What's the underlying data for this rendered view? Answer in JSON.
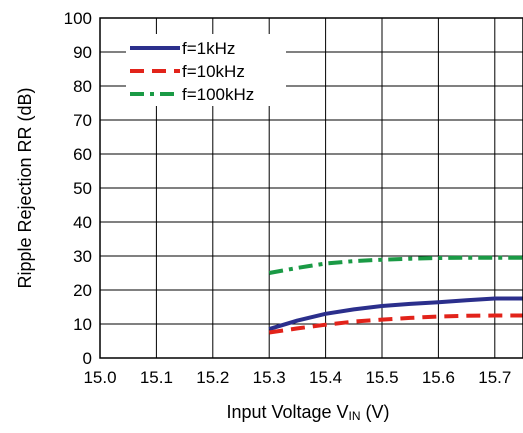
{
  "chart_data": {
    "type": "line",
    "xlabel": "Input Voltage V",
    "xlabel_subscript": "IN",
    "xlabel_unit": " (V)",
    "ylabel": "Ripple Rejection RR (dB)",
    "xlim": [
      15.0,
      15.75
    ],
    "ylim": [
      0,
      100
    ],
    "x_ticks": [
      "15.0",
      "15.1",
      "15.2",
      "15.3",
      "15.4",
      "15.5",
      "15.6",
      "15.7"
    ],
    "x_tick_values": [
      15.0,
      15.1,
      15.2,
      15.3,
      15.4,
      15.5,
      15.6,
      15.7
    ],
    "y_ticks": [
      "0",
      "10",
      "20",
      "30",
      "40",
      "50",
      "60",
      "70",
      "80",
      "90",
      "100"
    ],
    "y_tick_values": [
      0,
      10,
      20,
      30,
      40,
      50,
      60,
      70,
      80,
      90,
      100
    ],
    "grid": true,
    "legend_position": "top-left",
    "series": [
      {
        "name": "f=1kHz",
        "color": "#2b2f8c",
        "dash": "solid",
        "x": [
          15.3,
          15.35,
          15.4,
          15.45,
          15.5,
          15.55,
          15.6,
          15.65,
          15.7,
          15.75
        ],
        "y": [
          8.5,
          11,
          13,
          14.3,
          15.3,
          15.9,
          16.4,
          17.0,
          17.5,
          17.5
        ]
      },
      {
        "name": "f=10kHz",
        "color": "#e2231a",
        "dash": "dashed",
        "x": [
          15.3,
          15.35,
          15.4,
          15.45,
          15.5,
          15.55,
          15.6,
          15.65,
          15.7,
          15.75
        ],
        "y": [
          7.5,
          8.7,
          9.8,
          10.7,
          11.3,
          11.8,
          12.2,
          12.4,
          12.5,
          12.5
        ]
      },
      {
        "name": "f=100kHz",
        "color": "#1a9a45",
        "dash": "dashdot",
        "x": [
          15.3,
          15.35,
          15.4,
          15.45,
          15.5,
          15.55,
          15.6,
          15.65,
          15.7,
          15.75
        ],
        "y": [
          25,
          26.5,
          27.8,
          28.5,
          28.9,
          29.2,
          29.4,
          29.5,
          29.5,
          29.5
        ]
      }
    ]
  }
}
